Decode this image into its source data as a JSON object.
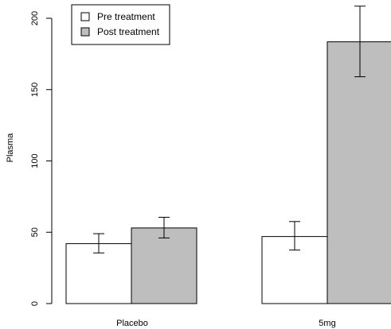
{
  "chart_data": {
    "type": "bar",
    "categories": [
      "Placebo",
      "5mg"
    ],
    "series": [
      {
        "name": "Pre treatment",
        "values": [
          42,
          47
        ],
        "error_low": [
          35.5,
          37.5
        ],
        "error_high": [
          49,
          57.5
        ],
        "color": "#ffffff"
      },
      {
        "name": "Post treatment",
        "values": [
          53,
          183.5
        ],
        "error_low": [
          46,
          159
        ],
        "error_high": [
          60.5,
          208.5
        ],
        "color": "#bebebe"
      }
    ],
    "title": "",
    "xlabel": "",
    "ylabel": "Plasma",
    "ylim": [
      0,
      200
    ],
    "yticks": [
      0,
      50,
      100,
      150,
      200
    ],
    "legend_position": "top-left",
    "grid": false
  }
}
